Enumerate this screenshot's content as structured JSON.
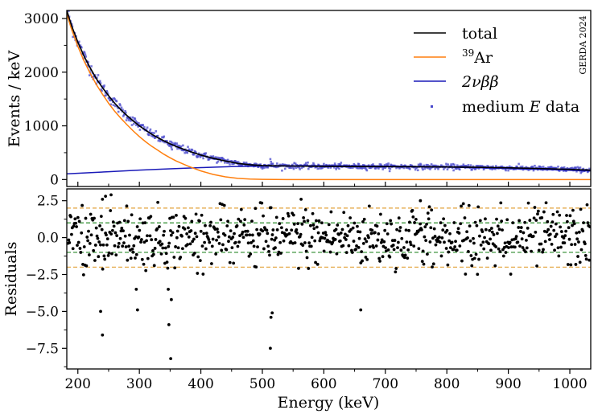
{
  "chart_data": [
    {
      "type": "line",
      "panel": "top",
      "ylabel": "Events / keV",
      "xlim": [
        182,
        1034
      ],
      "ylim": [
        -130,
        3150
      ],
      "yticks": [
        0,
        1000,
        2000,
        3000
      ],
      "ytick_labels": [
        "0",
        "1000",
        "2000",
        "3000"
      ],
      "watermark": "GERDA 2024",
      "legend_position": "top-right",
      "series": [
        {
          "name": "total",
          "color": "#000000",
          "x": [
            182,
            190,
            200,
            210,
            220,
            230,
            240,
            250,
            260,
            270,
            280,
            290,
            300,
            310,
            320,
            330,
            340,
            350,
            360,
            380,
            400,
            420,
            440,
            460,
            480,
            500,
            520,
            560,
            600,
            650,
            700,
            750,
            800,
            850,
            900,
            950,
            1000,
            1034
          ],
          "y": [
            3150,
            2860,
            2560,
            2300,
            2080,
            1880,
            1710,
            1560,
            1420,
            1300,
            1190,
            1090,
            1000,
            920,
            845,
            780,
            720,
            665,
            615,
            530,
            455,
            395,
            345,
            300,
            275,
            260,
            255,
            250,
            245,
            242,
            240,
            238,
            234,
            228,
            218,
            205,
            190,
            175
          ]
        },
        {
          "name": "39Ar",
          "color": "#ff7f0e",
          "x": [
            182,
            190,
            200,
            210,
            220,
            230,
            240,
            250,
            260,
            270,
            280,
            290,
            300,
            310,
            320,
            330,
            340,
            350,
            360,
            380,
            400,
            420,
            440,
            460,
            480,
            500,
            520,
            540,
            565,
            600,
            700,
            800,
            900,
            1000,
            1034
          ],
          "y": [
            3080,
            2790,
            2480,
            2210,
            1980,
            1770,
            1590,
            1420,
            1270,
            1140,
            1020,
            905,
            800,
            705,
            620,
            545,
            470,
            405,
            345,
            245,
            160,
            95,
            50,
            22,
            8,
            3,
            1,
            0,
            0,
            0,
            0,
            0,
            0,
            0,
            0
          ]
        },
        {
          "name": "2νββ",
          "color": "#1a1ab8",
          "x": [
            182,
            250,
            300,
            350,
            400,
            450,
            500,
            550,
            600,
            650,
            700,
            750,
            800,
            850,
            900,
            950,
            1000,
            1034
          ],
          "y": [
            105,
            145,
            175,
            200,
            222,
            240,
            250,
            256,
            258,
            256,
            250,
            242,
            232,
            220,
            205,
            190,
            172,
            160
          ]
        },
        {
          "name": "medium E data",
          "color": "#4848cc",
          "style": "markers",
          "description": "data points scatter around total"
        }
      ]
    },
    {
      "type": "scatter",
      "panel": "bottom",
      "ylabel": "Residuals",
      "xlabel": "Energy (keV)",
      "xlim": [
        182,
        1034
      ],
      "ylim": [
        -8.9,
        3.3
      ],
      "xticks": [
        200,
        300,
        400,
        500,
        600,
        700,
        800,
        900,
        1000
      ],
      "xtick_labels": [
        "200",
        "300",
        "400",
        "500",
        "600",
        "700",
        "800",
        "900",
        "1000"
      ],
      "yticks": [
        2.5,
        0.0,
        -2.5,
        -5.0,
        -7.5
      ],
      "ytick_labels": [
        "2.5",
        "0.0",
        "−2.5",
        "−5.0",
        "−7.5"
      ],
      "reference_lines": [
        {
          "y": 2,
          "color": "#e2a23a",
          "style": "dashed"
        },
        {
          "y": 1,
          "color": "#2a8a2a",
          "style": "dashed"
        },
        {
          "y": -1,
          "color": "#2a8a2a",
          "style": "dashed"
        },
        {
          "y": -2,
          "color": "#e2a23a",
          "style": "dashed"
        }
      ],
      "outliers": [
        {
          "x": 237,
          "y": -5.0
        },
        {
          "x": 240,
          "y": -6.6
        },
        {
          "x": 297,
          "y": -4.9
        },
        {
          "x": 348,
          "y": -5.9
        },
        {
          "x": 351,
          "y": -8.2
        },
        {
          "x": 352,
          "y": -4.2
        },
        {
          "x": 347,
          "y": -3.5
        },
        {
          "x": 513,
          "y": -7.5
        },
        {
          "x": 514,
          "y": -5.4
        },
        {
          "x": 516,
          "y": -5.1
        },
        {
          "x": 660,
          "y": -4.9
        },
        {
          "x": 295,
          "y": -3.5
        },
        {
          "x": 240,
          "y": 2.6
        },
        {
          "x": 245,
          "y": 2.8
        },
        {
          "x": 254,
          "y": 2.9
        },
        {
          "x": 563,
          "y": 2.6
        },
        {
          "x": 757,
          "y": 2.5
        }
      ]
    }
  ],
  "legend": {
    "items": [
      {
        "label": "total",
        "kind": "line",
        "color": "#000000"
      },
      {
        "label": "39Ar",
        "sup": "39",
        "base": "Ar",
        "kind": "line",
        "color": "#ff7f0e"
      },
      {
        "label": "2νββ",
        "kind": "line",
        "color": "#1a1ab8"
      },
      {
        "label": "medium E data",
        "pre": "medium ",
        "ital": "E",
        "post": " data",
        "kind": "marker",
        "color": "#4848cc"
      }
    ]
  }
}
